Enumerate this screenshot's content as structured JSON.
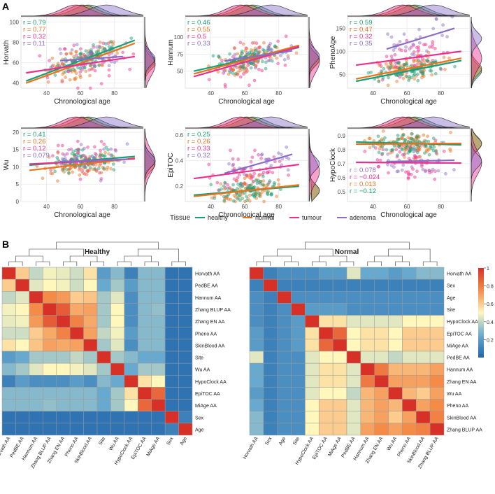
{
  "panel_labels": {
    "A": "A",
    "B": "B"
  },
  "legend": {
    "title": "Tissue",
    "items": [
      "healthy",
      "normal",
      "tumour",
      "adenoma"
    ]
  },
  "colors": {
    "healthy": "#1a9e77",
    "normal": "#e8731d",
    "tumour": "#e8318f",
    "adenoma": "#8a6cc7",
    "grid": "#ebebeb",
    "axis": "#555555",
    "cell_border": "#9a9a9a",
    "dendro": "#333333"
  },
  "chart_data": [
    {
      "type": "scatter",
      "ylabel": "Horvath",
      "xlabel": "Chronological age",
      "xlim": [
        25,
        97
      ],
      "ylim": [
        35,
        105
      ],
      "xticks": [
        "40",
        "60",
        "80"
      ],
      "yticks": [
        "40",
        "60",
        "80",
        "100"
      ],
      "r_labels": [
        {
          "group": "healthy",
          "text": "r = 0.79"
        },
        {
          "group": "normal",
          "text": "r = 0.77"
        },
        {
          "group": "tumour",
          "text": "r = 0.32"
        },
        {
          "group": "adenoma",
          "text": "r = 0.11"
        }
      ],
      "fits": [
        {
          "group": "healthy",
          "x": [
            28,
            92
          ],
          "y": [
            42,
            82
          ]
        },
        {
          "group": "normal",
          "x": [
            28,
            92
          ],
          "y": [
            40,
            79
          ]
        },
        {
          "group": "tumour",
          "x": [
            28,
            92
          ],
          "y": [
            50,
            66
          ]
        },
        {
          "group": "adenoma",
          "x": [
            48,
            85
          ],
          "y": [
            62,
            66
          ]
        }
      ]
    },
    {
      "type": "scatter",
      "ylabel": "Hannum",
      "xlabel": "Chronological age",
      "xlim": [
        25,
        97
      ],
      "ylim": [
        25,
        130
      ],
      "xticks": [
        "40",
        "60",
        "80"
      ],
      "yticks": [
        "50",
        "75",
        "100"
      ],
      "r_labels": [
        {
          "group": "healthy",
          "text": "r = 0.46"
        },
        {
          "group": "normal",
          "text": "r = 0.55"
        },
        {
          "group": "tumour",
          "text": "r = 0.5"
        },
        {
          "group": "adenoma",
          "text": "r = 0.33"
        }
      ],
      "fits": [
        {
          "group": "healthy",
          "x": [
            30,
            92
          ],
          "y": [
            50,
            85
          ]
        },
        {
          "group": "normal",
          "x": [
            30,
            92
          ],
          "y": [
            46,
            88
          ]
        },
        {
          "group": "tumour",
          "x": [
            30,
            92
          ],
          "y": [
            42,
            86
          ]
        },
        {
          "group": "adenoma",
          "x": [
            48,
            88
          ],
          "y": [
            65,
            80
          ]
        }
      ]
    },
    {
      "type": "scatter",
      "ylabel": "PhenoAge",
      "xlabel": "Chronological age",
      "xlim": [
        25,
        97
      ],
      "ylim": [
        20,
        175
      ],
      "xticks": [
        "40",
        "60",
        "80"
      ],
      "yticks": [
        "50",
        "100",
        "150"
      ],
      "r_labels": [
        {
          "group": "healthy",
          "text": "r = 0.59"
        },
        {
          "group": "normal",
          "text": "r = 0.47"
        },
        {
          "group": "tumour",
          "text": "r = 0.32"
        },
        {
          "group": "adenoma",
          "text": "r = 0.35"
        }
      ],
      "fits": [
        {
          "group": "healthy",
          "x": [
            30,
            92
          ],
          "y": [
            35,
            80
          ]
        },
        {
          "group": "normal",
          "x": [
            30,
            92
          ],
          "y": [
            40,
            85
          ]
        },
        {
          "group": "tumour",
          "x": [
            30,
            92
          ],
          "y": [
            70,
            100
          ]
        },
        {
          "group": "adenoma",
          "x": [
            48,
            88
          ],
          "y": [
            105,
            150
          ]
        }
      ]
    },
    {
      "type": "scatter",
      "ylabel": "Wu",
      "xlabel": "Chronological age",
      "xlim": [
        25,
        97
      ],
      "ylim": [
        0,
        21
      ],
      "xticks": [
        "40",
        "60",
        "80"
      ],
      "yticks": [
        "0",
        "5",
        "10",
        "15",
        "20"
      ],
      "r_labels": [
        {
          "group": "healthy",
          "text": "r = 0.41"
        },
        {
          "group": "normal",
          "text": "r = 0.26"
        },
        {
          "group": "tumour",
          "text": "r = 0.12"
        },
        {
          "group": "adenoma",
          "text": "r = 0.079"
        }
      ],
      "fits": [
        {
          "group": "healthy",
          "x": [
            30,
            92
          ],
          "y": [
            10.5,
            13
          ]
        },
        {
          "group": "normal",
          "x": [
            30,
            92
          ],
          "y": [
            9,
            12.5
          ]
        },
        {
          "group": "tumour",
          "x": [
            30,
            92
          ],
          "y": [
            10.8,
            12.3
          ]
        },
        {
          "group": "adenoma",
          "x": [
            48,
            88
          ],
          "y": [
            11.5,
            12.2
          ]
        }
      ]
    },
    {
      "type": "scatter",
      "ylabel": "EpiTOC",
      "xlabel": "Chronological age",
      "xlim": [
        25,
        97
      ],
      "ylim": [
        0.08,
        0.65
      ],
      "xticks": [
        "40",
        "60",
        "80"
      ],
      "yticks": [
        "0.2",
        "0.4",
        "0.6"
      ],
      "r_labels": [
        {
          "group": "healthy",
          "text": "r = 0.25"
        },
        {
          "group": "normal",
          "text": "r = 0.26"
        },
        {
          "group": "tumour",
          "text": "r = 0.33"
        },
        {
          "group": "adenoma",
          "text": "r = 0.32"
        }
      ],
      "fits": [
        {
          "group": "healthy",
          "x": [
            30,
            92
          ],
          "y": [
            0.13,
            0.2
          ]
        },
        {
          "group": "normal",
          "x": [
            30,
            92
          ],
          "y": [
            0.12,
            0.21
          ]
        },
        {
          "group": "tumour",
          "x": [
            30,
            92
          ],
          "y": [
            0.26,
            0.37
          ]
        },
        {
          "group": "adenoma",
          "x": [
            48,
            88
          ],
          "y": [
            0.3,
            0.45
          ]
        }
      ]
    },
    {
      "type": "scatter",
      "ylabel": "HypoClock",
      "xlabel": "Chronological age",
      "xlim": [
        25,
        97
      ],
      "ylim": [
        0.43,
        0.95
      ],
      "xticks": [
        "40",
        "60",
        "80"
      ],
      "yticks": [
        "0.5",
        "0.6",
        "0.7",
        "0.8",
        "0.9"
      ],
      "r_labels": [
        {
          "group": "adenoma",
          "text": "r = 0.078"
        },
        {
          "group": "tumour",
          "text": "r = −0.024"
        },
        {
          "group": "normal",
          "text": "r = 0.013"
        },
        {
          "group": "healthy",
          "text": "r = −0.12"
        }
      ],
      "fits": [
        {
          "group": "healthy",
          "x": [
            30,
            92
          ],
          "y": [
            0.855,
            0.835
          ]
        },
        {
          "group": "normal",
          "x": [
            30,
            92
          ],
          "y": [
            0.84,
            0.845
          ]
        },
        {
          "group": "tumour",
          "x": [
            30,
            92
          ],
          "y": [
            0.71,
            0.705
          ]
        },
        {
          "group": "adenoma",
          "x": [
            48,
            88
          ],
          "y": [
            0.715,
            0.725
          ]
        }
      ]
    },
    {
      "type": "heatmap",
      "title": "Healthy",
      "labels": [
        "Horvath AA",
        "PedBE AA",
        "Hannum AA",
        "Zhang BLUP AA",
        "Zhang EN AA",
        "Pheno AA",
        "SkinBlood AA",
        "Site",
        "Wu AA",
        "HypoClock AA",
        "EpiTOC AA",
        "MiAge AA",
        "Sex",
        "Age"
      ],
      "values": [
        [
          1.0,
          0.6,
          0.4,
          0.48,
          0.46,
          0.42,
          0.55,
          0.2,
          0.3,
          0.1,
          0.3,
          0.3,
          0.05,
          0.05
        ],
        [
          0.6,
          1.0,
          0.45,
          0.5,
          0.48,
          0.42,
          0.5,
          0.25,
          0.35,
          0.2,
          0.3,
          0.3,
          0.05,
          0.05
        ],
        [
          0.4,
          0.45,
          1.0,
          0.75,
          0.72,
          0.6,
          0.62,
          0.35,
          0.45,
          0.15,
          0.3,
          0.3,
          0.05,
          0.05
        ],
        [
          0.48,
          0.5,
          0.75,
          1.0,
          0.88,
          0.68,
          0.7,
          0.35,
          0.5,
          0.15,
          0.3,
          0.32,
          0.05,
          0.05
        ],
        [
          0.46,
          0.48,
          0.72,
          0.88,
          1.0,
          0.78,
          0.68,
          0.35,
          0.5,
          0.15,
          0.3,
          0.3,
          0.05,
          0.05
        ],
        [
          0.42,
          0.42,
          0.6,
          0.68,
          0.78,
          1.0,
          0.7,
          0.4,
          0.48,
          0.2,
          0.3,
          0.3,
          0.05,
          0.05
        ],
        [
          0.55,
          0.5,
          0.62,
          0.7,
          0.68,
          0.7,
          1.0,
          0.35,
          0.45,
          0.15,
          0.3,
          0.3,
          0.05,
          0.05
        ],
        [
          0.2,
          0.25,
          0.35,
          0.35,
          0.35,
          0.4,
          0.35,
          1.0,
          0.35,
          0.3,
          0.25,
          0.25,
          0.05,
          0.05
        ],
        [
          0.3,
          0.35,
          0.45,
          0.5,
          0.5,
          0.48,
          0.45,
          0.35,
          1.0,
          0.25,
          0.35,
          0.35,
          0.05,
          0.05
        ],
        [
          0.1,
          0.2,
          0.15,
          0.15,
          0.15,
          0.2,
          0.15,
          0.3,
          0.25,
          1.0,
          0.55,
          0.5,
          0.05,
          0.05
        ],
        [
          0.3,
          0.3,
          0.3,
          0.3,
          0.3,
          0.3,
          0.3,
          0.25,
          0.35,
          0.55,
          1.0,
          0.85,
          0.05,
          0.05
        ],
        [
          0.3,
          0.3,
          0.3,
          0.32,
          0.3,
          0.3,
          0.3,
          0.25,
          0.35,
          0.5,
          0.85,
          1.0,
          0.05,
          0.05
        ],
        [
          0.05,
          0.05,
          0.05,
          0.05,
          0.05,
          0.05,
          0.05,
          0.05,
          0.05,
          0.05,
          0.05,
          0.05,
          1.0,
          0.1
        ],
        [
          0.05,
          0.05,
          0.05,
          0.05,
          0.05,
          0.05,
          0.05,
          0.05,
          0.05,
          0.05,
          0.05,
          0.05,
          0.1,
          1.0
        ]
      ]
    },
    {
      "type": "heatmap",
      "title": "Normal",
      "labels": [
        "Horvath AA",
        "Sex",
        "Age",
        "Site",
        "HypoClock AA",
        "EpiTOC AA",
        "MiAge AA",
        "PedBE AA",
        "Hannum AA",
        "Zhang EN AA",
        "Wu AA",
        "Pheno AA",
        "SkinBlood AA",
        "Zhang BLUP AA"
      ],
      "values": [
        [
          1.0,
          0.1,
          0.15,
          0.15,
          0.15,
          0.2,
          0.2,
          0.45,
          0.25,
          0.25,
          0.2,
          0.25,
          0.3,
          0.3
        ],
        [
          0.1,
          1.0,
          0.1,
          0.1,
          0.1,
          0.1,
          0.1,
          0.1,
          0.1,
          0.1,
          0.1,
          0.1,
          0.1,
          0.1
        ],
        [
          0.15,
          0.1,
          1.0,
          0.15,
          0.15,
          0.15,
          0.15,
          0.15,
          0.15,
          0.15,
          0.15,
          0.15,
          0.15,
          0.15
        ],
        [
          0.15,
          0.1,
          0.15,
          1.0,
          0.2,
          0.2,
          0.2,
          0.15,
          0.15,
          0.15,
          0.15,
          0.15,
          0.15,
          0.15
        ],
        [
          0.15,
          0.1,
          0.15,
          0.2,
          1.0,
          0.55,
          0.55,
          0.45,
          0.45,
          0.45,
          0.45,
          0.5,
          0.5,
          0.5
        ],
        [
          0.2,
          0.1,
          0.15,
          0.2,
          0.55,
          1.0,
          0.85,
          0.5,
          0.55,
          0.55,
          0.5,
          0.6,
          0.6,
          0.6
        ],
        [
          0.2,
          0.1,
          0.15,
          0.2,
          0.55,
          0.85,
          1.0,
          0.5,
          0.55,
          0.55,
          0.5,
          0.6,
          0.6,
          0.6
        ],
        [
          0.45,
          0.1,
          0.15,
          0.15,
          0.45,
          0.5,
          0.5,
          1.0,
          0.45,
          0.45,
          0.4,
          0.45,
          0.45,
          0.45
        ],
        [
          0.25,
          0.1,
          0.15,
          0.15,
          0.45,
          0.55,
          0.55,
          0.45,
          1.0,
          0.8,
          0.65,
          0.65,
          0.65,
          0.7
        ],
        [
          0.25,
          0.1,
          0.15,
          0.15,
          0.45,
          0.55,
          0.55,
          0.45,
          0.8,
          1.0,
          0.7,
          0.7,
          0.7,
          0.75
        ],
        [
          0.2,
          0.1,
          0.15,
          0.15,
          0.45,
          0.5,
          0.5,
          0.4,
          0.65,
          0.7,
          1.0,
          0.65,
          0.6,
          0.7
        ],
        [
          0.25,
          0.1,
          0.15,
          0.15,
          0.5,
          0.6,
          0.6,
          0.45,
          0.65,
          0.7,
          0.65,
          1.0,
          0.7,
          0.75
        ],
        [
          0.3,
          0.1,
          0.15,
          0.15,
          0.5,
          0.6,
          0.6,
          0.45,
          0.65,
          0.7,
          0.6,
          0.7,
          1.0,
          0.78
        ],
        [
          0.3,
          0.1,
          0.15,
          0.15,
          0.5,
          0.6,
          0.6,
          0.45,
          0.7,
          0.75,
          0.7,
          0.75,
          0.78,
          1.0
        ]
      ]
    }
  ],
  "colorbar": {
    "ticks": [
      "1",
      "0.8",
      "0.6",
      "0.4",
      "0.2"
    ],
    "range": [
      0,
      1
    ]
  }
}
